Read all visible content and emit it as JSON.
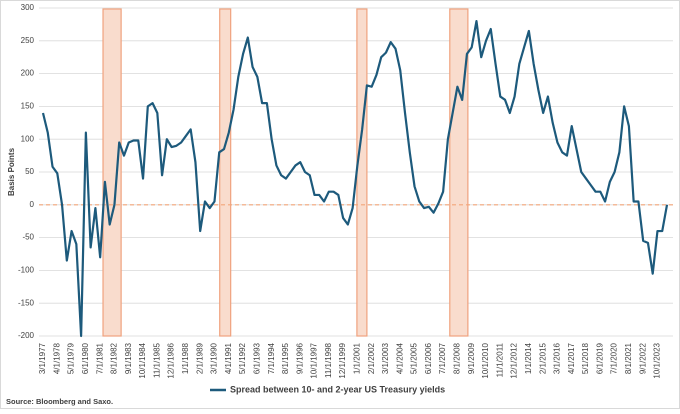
{
  "chart_data": {
    "type": "line",
    "y_axis_label": "Basis Points",
    "source": "Source: Bloomberg and Saxo.",
    "categories": [
      "3/1/1977",
      null,
      null,
      "4/1/1978",
      null,
      null,
      "5/1/1979",
      null,
      null,
      "6/1/1980",
      null,
      null,
      "7/1/1981",
      null,
      null,
      "8/1/1982",
      null,
      null,
      "9/1/1983",
      null,
      null,
      "10/1/1984",
      null,
      null,
      "11/1/1985",
      null,
      null,
      "12/1/1986",
      null,
      null,
      "1/1/1988",
      null,
      null,
      "2/1/1989",
      null,
      null,
      "3/1/1990",
      null,
      null,
      "4/1/1991",
      null,
      null,
      "5/1/1992",
      null,
      null,
      "6/1/1993",
      null,
      null,
      "7/1/1994",
      null,
      null,
      "8/1/1995",
      null,
      null,
      "9/1/1996",
      null,
      null,
      "10/1/1997",
      null,
      null,
      "11/1/1998",
      null,
      null,
      "12/1/1999",
      null,
      null,
      "1/1/2001",
      null,
      null,
      "2/1/2002",
      null,
      null,
      "3/1/2003",
      null,
      null,
      "4/1/2004",
      null,
      null,
      "5/1/2005",
      null,
      null,
      "6/1/2006",
      null,
      null,
      "7/1/2007",
      null,
      null,
      "8/1/2008",
      null,
      null,
      "9/1/2009",
      null,
      null,
      "10/1/2010",
      null,
      null,
      "11/1/2011",
      null,
      null,
      "12/1/2012",
      null,
      null,
      "1/1/2014",
      null,
      null,
      "2/1/2015",
      null,
      null,
      "3/1/2016",
      null,
      null,
      "4/1/2017",
      null,
      null,
      "5/1/2018",
      null,
      null,
      "6/1/2019",
      null,
      null,
      "7/1/2020",
      null,
      null,
      "8/1/2021",
      null,
      null,
      "9/1/2022",
      null,
      null,
      "10/1/2023",
      null,
      null
    ],
    "series": [
      {
        "name": "Spread between 10- and 2-year US Treasury yields",
        "color": "#1d5a7c",
        "values": [
          140,
          110,
          58,
          48,
          0,
          -85,
          -40,
          -60,
          -200,
          110,
          -65,
          -5,
          -80,
          35,
          -30,
          0,
          95,
          75,
          95,
          98,
          98,
          40,
          150,
          155,
          140,
          45,
          100,
          88,
          90,
          95,
          105,
          115,
          65,
          -40,
          5,
          -5,
          5,
          80,
          85,
          110,
          145,
          195,
          230,
          255,
          210,
          195,
          155,
          155,
          100,
          60,
          45,
          40,
          50,
          60,
          65,
          50,
          45,
          15,
          15,
          5,
          20,
          20,
          15,
          -20,
          -30,
          -5,
          60,
          115,
          182,
          180,
          198,
          225,
          232,
          248,
          238,
          205,
          140,
          80,
          28,
          5,
          -5,
          -3,
          -12,
          2,
          20,
          100,
          140,
          180,
          160,
          230,
          240,
          280,
          225,
          250,
          268,
          215,
          165,
          160,
          140,
          165,
          215,
          240,
          265,
          215,
          175,
          140,
          165,
          125,
          95,
          80,
          75,
          120,
          85,
          50,
          40,
          30,
          20,
          20,
          5,
          35,
          50,
          80,
          150,
          120,
          5,
          5,
          -55,
          -58,
          -105,
          -40,
          -40,
          0
        ]
      }
    ],
    "ylim": [
      -200,
      300
    ],
    "yticks": [
      -200,
      -150,
      -100,
      -50,
      0,
      50,
      100,
      150,
      200,
      250,
      300
    ],
    "grid": true,
    "reference_line": {
      "value": 0,
      "color": "#f4a57a"
    },
    "shaded_periods": {
      "color": "#f9dccd",
      "edge_color": "#f0a27e",
      "ranges": [
        [
          12.6,
          16.4
        ],
        [
          37.1,
          39.4
        ],
        [
          65.9,
          68.0
        ],
        [
          85.4,
          89.2
        ]
      ]
    }
  }
}
